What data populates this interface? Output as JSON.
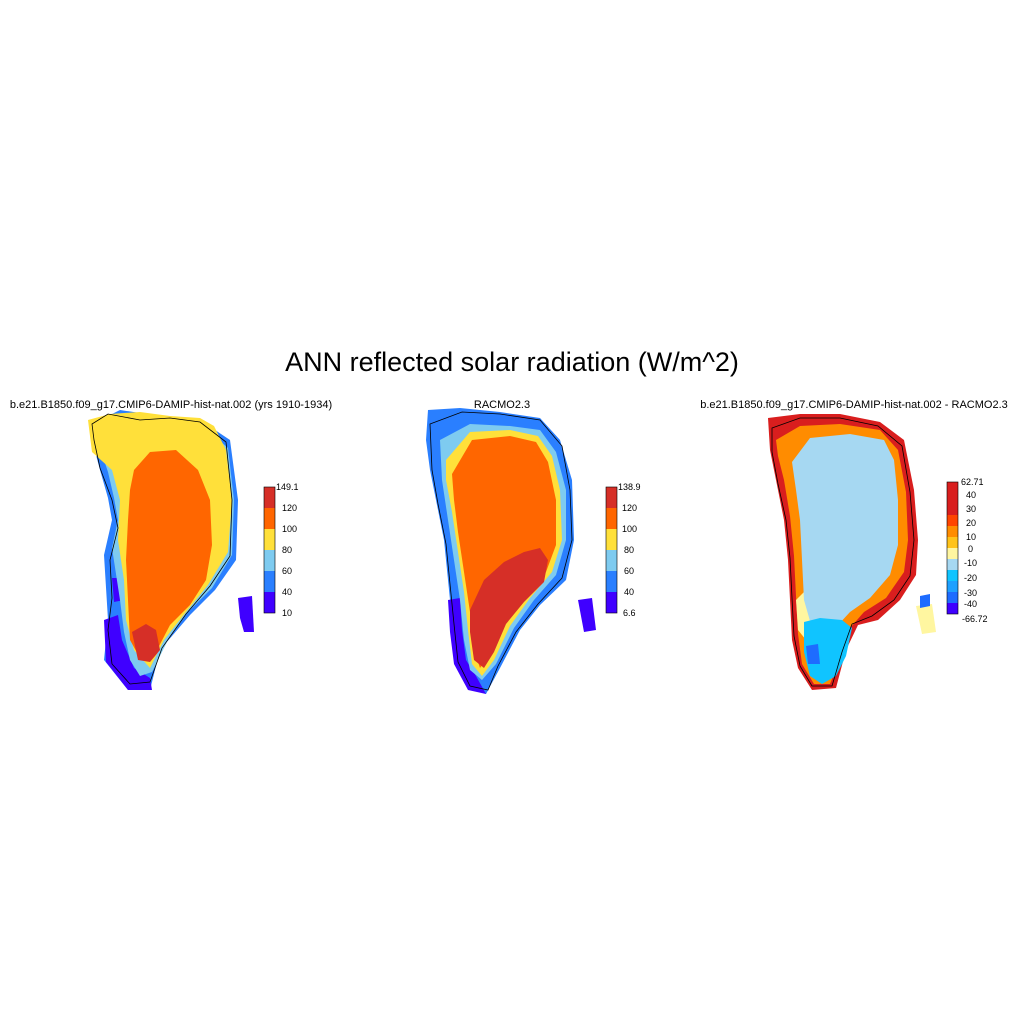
{
  "title": "ANN reflected solar radiation (W/m^2)",
  "panels": [
    {
      "title": "b.e21.B1850.f09_g17.CMIP6-DAMIP-hist-nat.002 (yrs 1910-1934)",
      "colorbar": {
        "colors": [
          "#3f00ff",
          "#2a7fff",
          "#7ecbf0",
          "#ffe03a",
          "#ff6600",
          "#d62f27"
        ],
        "labels": [
          "10",
          "40",
          "60",
          "80",
          "100",
          "120",
          "149.1"
        ]
      }
    },
    {
      "title": "RACMO2.3",
      "colorbar": {
        "colors": [
          "#3f00ff",
          "#2a7fff",
          "#7ecbf0",
          "#ffe03a",
          "#ff6600",
          "#d62f27"
        ],
        "labels": [
          "6.6",
          "40",
          "60",
          "80",
          "100",
          "120",
          "138.9"
        ]
      }
    },
    {
      "title": "b.e21.B1850.f09_g17.CMIP6-DAMIP-hist-nat.002 - RACMO2.3",
      "colorbar": {
        "colors": [
          "#3f00ff",
          "#1e6cff",
          "#1ea0ff",
          "#10c4ff",
          "#a6d8f2",
          "#fff6a0",
          "#ffc31a",
          "#ff8c00",
          "#ff4500",
          "#d91e1e"
        ],
        "labels": [
          "-66.72",
          "-40",
          "-30",
          "-20",
          "-10",
          "0",
          "10",
          "20",
          "30",
          "40",
          "62.71"
        ]
      }
    }
  ]
}
